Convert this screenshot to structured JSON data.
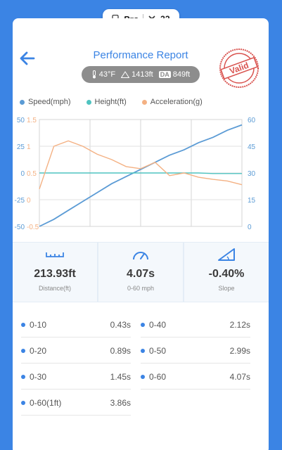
{
  "status_bar": {
    "pro_label": "Pro",
    "count": "32"
  },
  "header": {
    "title": "Performance Report",
    "stamp_text": "Valid"
  },
  "conditions": {
    "temp": "43°F",
    "altitude": "1413ft",
    "da_label": "DA",
    "da_value": "849ft"
  },
  "legend": [
    {
      "label": "Speed(mph)",
      "color": "#5b9bd5"
    },
    {
      "label": "Height(ft)",
      "color": "#4fc3c0"
    },
    {
      "label": "Acceleration(g)",
      "color": "#f4b183"
    }
  ],
  "chart_data": {
    "type": "line",
    "x": [
      0,
      0.5,
      1,
      1.5,
      2,
      2.5,
      3,
      3.5,
      4,
      4.5,
      5,
      5.5,
      6,
      6.5,
      7
    ],
    "series": [
      {
        "name": "Speed(mph)",
        "axis": "right",
        "values": [
          0,
          4,
          9,
          14,
          19,
          24,
          28,
          32,
          36,
          40,
          43,
          47,
          50,
          54,
          57
        ]
      },
      {
        "name": "Height(ft)",
        "axis": "left-outer",
        "values": [
          0,
          0,
          0,
          0,
          0,
          0,
          0,
          0,
          0,
          0,
          0,
          0,
          -0.5,
          -0.5,
          -0.5
        ]
      },
      {
        "name": "Acceleration(g)",
        "axis": "left-inner",
        "values": [
          0.2,
          1.0,
          1.1,
          1.0,
          0.85,
          0.75,
          0.62,
          0.58,
          0.7,
          0.45,
          0.5,
          0.42,
          0.38,
          0.35,
          0.28
        ]
      }
    ],
    "left_outer_ticks": [
      "50",
      "25",
      "0",
      "-25",
      "-50"
    ],
    "left_inner_ticks": [
      "1.5",
      "1",
      "0.5",
      "0",
      "-0.5"
    ],
    "right_ticks": [
      "60",
      "45",
      "30",
      "15",
      "0"
    ],
    "ylim_left_outer": [
      -50,
      50
    ],
    "ylim_left_inner": [
      -0.5,
      1.5
    ],
    "ylim_right": [
      0,
      60
    ],
    "grid": true
  },
  "stats": [
    {
      "value": "213.93ft",
      "label": "Distance(ft)",
      "icon": "ruler-icon"
    },
    {
      "value": "4.07s",
      "label": "0-60 mph",
      "icon": "speedometer-icon"
    },
    {
      "value": "-0.40%",
      "label": "Slope",
      "icon": "slope-icon"
    }
  ],
  "times": [
    {
      "label": "0-10",
      "value": "0.43s"
    },
    {
      "label": "0-40",
      "value": "2.12s"
    },
    {
      "label": "0-20",
      "value": "0.89s"
    },
    {
      "label": "0-50",
      "value": "2.99s"
    },
    {
      "label": "0-30",
      "value": "1.45s"
    },
    {
      "label": "0-60",
      "value": "4.07s"
    },
    {
      "label": "0-60(1ft)",
      "value": "3.86s"
    }
  ]
}
